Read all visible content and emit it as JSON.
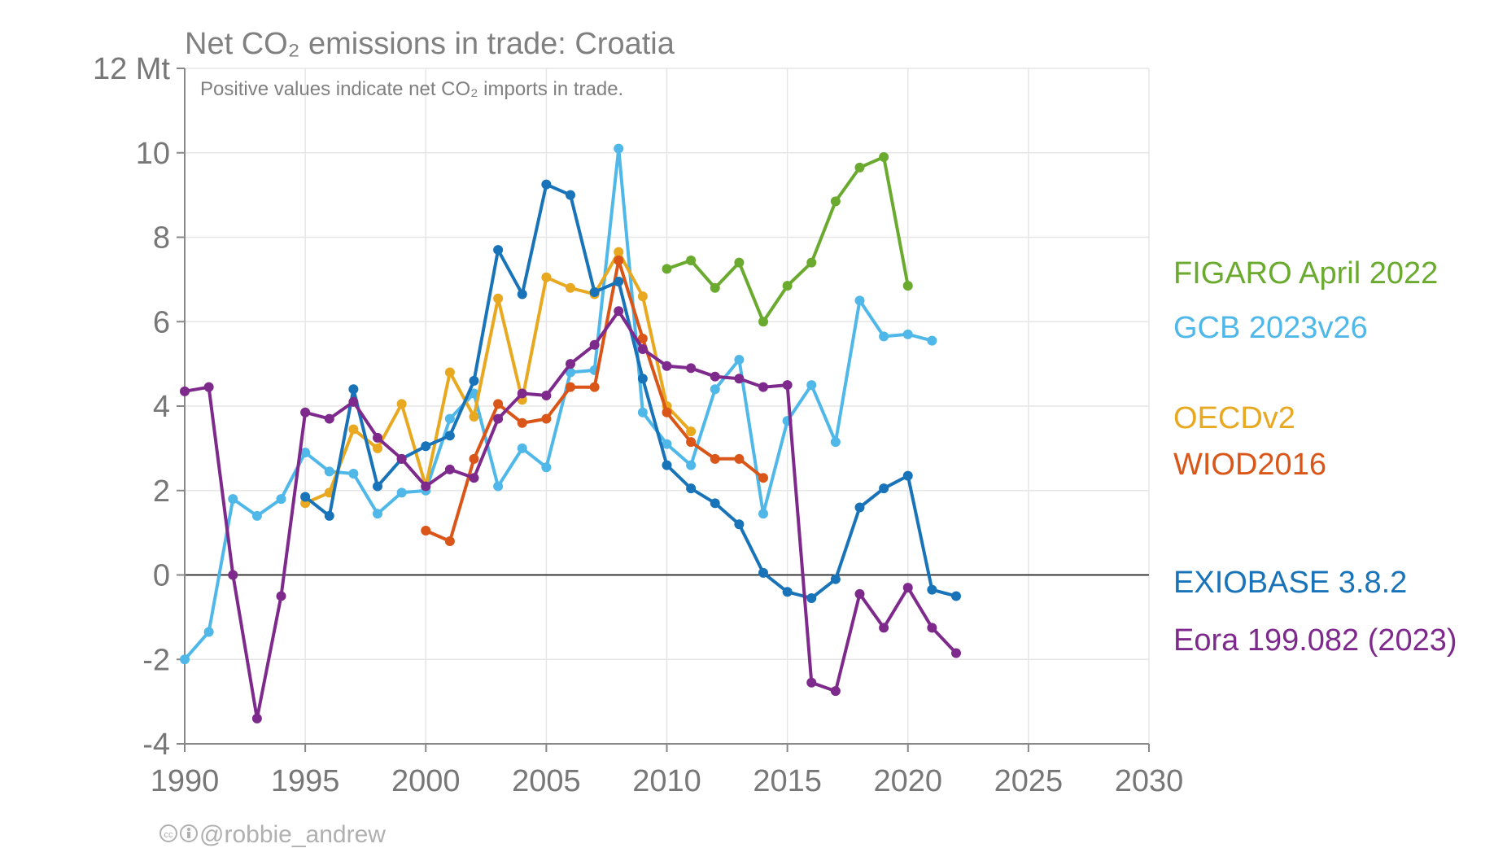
{
  "chart_data": {
    "type": "line",
    "title": "Net CO₂ emissions in trade: Croatia",
    "subtitle": "Positive values indicate net CO₂ imports in trade.",
    "ylabel_unit": "Mt",
    "xlim": [
      1990,
      2030
    ],
    "ylim": [
      -4,
      12
    ],
    "x_ticks": [
      1990,
      1995,
      2000,
      2005,
      2010,
      2015,
      2020,
      2025,
      2030
    ],
    "y_ticks": [
      -4,
      -2,
      0,
      2,
      4,
      6,
      8,
      10,
      12
    ],
    "y_tick_labels": [
      "-4",
      "-2",
      "0",
      "2",
      "4",
      "6",
      "8",
      "10",
      "12 Mt"
    ],
    "grid": true,
    "legend_position": "right",
    "credit": "@robbie_andrew",
    "series": [
      {
        "name": "FIGARO April 2022",
        "color": "#6aaa2e",
        "x": [
          2010,
          2011,
          2012,
          2013,
          2014,
          2015,
          2016,
          2017,
          2018,
          2019,
          2020
        ],
        "y": [
          7.25,
          7.45,
          6.8,
          7.4,
          6.0,
          6.85,
          7.4,
          8.85,
          9.65,
          9.9,
          6.85
        ]
      },
      {
        "name": "GCB 2023v26",
        "color": "#4fb8e8",
        "x": [
          1990,
          1991,
          1992,
          1993,
          1994,
          1995,
          1996,
          1997,
          1998,
          1999,
          2000,
          2001,
          2002,
          2003,
          2004,
          2005,
          2006,
          2007,
          2008,
          2009,
          2010,
          2011,
          2012,
          2013,
          2014,
          2015,
          2016,
          2017,
          2018,
          2019,
          2020,
          2021
        ],
        "y": [
          -2.0,
          -1.35,
          1.8,
          1.4,
          1.8,
          2.9,
          2.45,
          2.4,
          1.45,
          1.95,
          2.0,
          3.7,
          4.3,
          2.1,
          3.0,
          2.55,
          4.8,
          4.85,
          10.1,
          3.85,
          3.1,
          2.6,
          4.4,
          5.1,
          1.45,
          3.65,
          4.5,
          3.15,
          6.5,
          5.65,
          5.7,
          5.55
        ]
      },
      {
        "name": "OECDv2",
        "color": "#e8a820",
        "x": [
          1995,
          1996,
          1997,
          1998,
          1999,
          2000,
          2001,
          2002,
          2003,
          2004,
          2005,
          2006,
          2007,
          2008,
          2009,
          2010,
          2011
        ],
        "y": [
          1.7,
          1.95,
          3.45,
          3.0,
          4.05,
          2.1,
          4.8,
          3.75,
          6.55,
          4.15,
          7.05,
          6.8,
          6.65,
          7.65,
          6.6,
          4.0,
          3.4
        ]
      },
      {
        "name": "WIOD2016",
        "color": "#d95518",
        "x": [
          2000,
          2001,
          2002,
          2003,
          2004,
          2005,
          2006,
          2007,
          2008,
          2009,
          2010,
          2011,
          2012,
          2013,
          2014
        ],
        "y": [
          1.05,
          0.8,
          2.75,
          4.05,
          3.6,
          3.7,
          4.45,
          4.45,
          7.45,
          5.6,
          3.85,
          3.15,
          2.75,
          2.75,
          2.3
        ]
      },
      {
        "name": "EXIOBASE 3.8.2",
        "color": "#1873b8",
        "x": [
          1995,
          1996,
          1997,
          1998,
          1999,
          2000,
          2001,
          2002,
          2003,
          2004,
          2005,
          2006,
          2007,
          2008,
          2009,
          2010,
          2011,
          2012,
          2013,
          2014,
          2015,
          2016,
          2017,
          2018,
          2019,
          2020,
          2021,
          2022
        ],
        "y": [
          1.85,
          1.4,
          4.4,
          2.1,
          2.75,
          3.05,
          3.3,
          4.6,
          7.7,
          6.65,
          9.25,
          9.0,
          6.7,
          6.95,
          4.65,
          2.6,
          2.05,
          1.7,
          1.2,
          0.05,
          -0.4,
          -0.55,
          -0.1,
          1.6,
          2.05,
          2.35,
          -0.35,
          -0.5
        ]
      },
      {
        "name": "Eora 199.082 (2023)",
        "color": "#7e2a8c",
        "x": [
          1990,
          1991,
          1992,
          1993,
          1994,
          1995,
          1996,
          1997,
          1998,
          1999,
          2000,
          2001,
          2002,
          2003,
          2004,
          2005,
          2006,
          2007,
          2008,
          2009,
          2010,
          2011,
          2012,
          2013,
          2014,
          2015,
          2016,
          2017,
          2018,
          2019,
          2020,
          2021,
          2022
        ],
        "y": [
          4.35,
          4.45,
          0.0,
          -3.4,
          -0.5,
          3.85,
          3.7,
          4.1,
          3.25,
          2.75,
          2.1,
          2.5,
          2.3,
          3.7,
          4.3,
          4.25,
          5.0,
          5.45,
          6.25,
          5.35,
          4.95,
          4.9,
          4.7,
          4.65,
          4.45,
          4.5,
          -2.55,
          -2.75,
          -0.45,
          -1.25,
          -0.3,
          -1.25,
          -1.85
        ]
      }
    ]
  }
}
